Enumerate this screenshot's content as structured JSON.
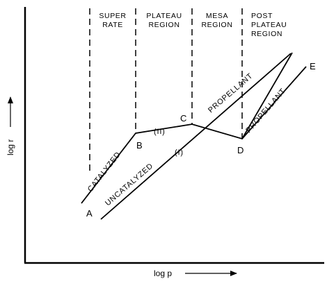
{
  "axes": {
    "x_label": "log p",
    "y_label": "log r"
  },
  "regions": {
    "super_rate": [
      "SUPER",
      "RATE"
    ],
    "plateau": [
      "PLATEAU",
      "REGION"
    ],
    "mesa": [
      "MESA",
      "REGION"
    ],
    "post_plateau": [
      "POST",
      "PLATEAU",
      "REGION"
    ]
  },
  "points": {
    "a": "A",
    "b": "B",
    "c": "C",
    "d": "D",
    "e": "E"
  },
  "curves": {
    "catalyzed": "CATALYZED",
    "uncatalyzed": "UNCATALYZED",
    "propellant_upper": "PROPELLANT",
    "propellant_lower": "PROPELLANT",
    "segment_ii": "(II)",
    "segment_i": "(I)"
  }
}
